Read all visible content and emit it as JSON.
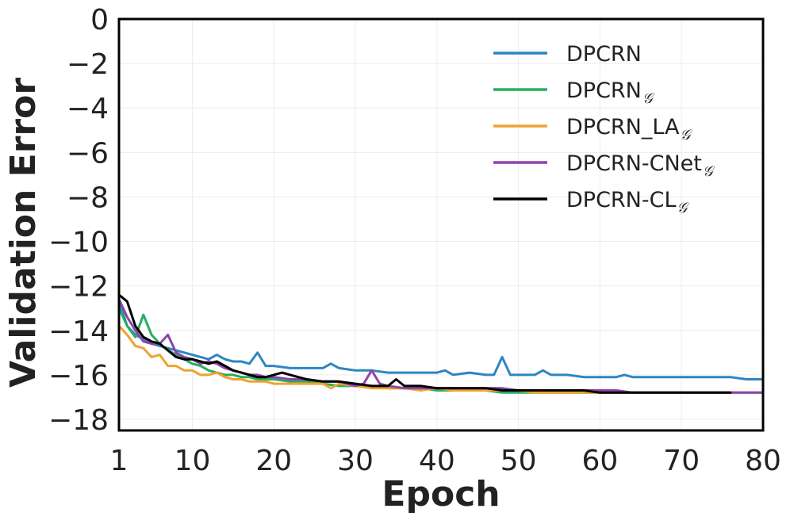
{
  "chart_data": {
    "type": "line",
    "xlabel": "Epoch",
    "ylabel": "Validation Error",
    "xlim": [
      1,
      80
    ],
    "ylim": [
      -18.5,
      0
    ],
    "xticks": [
      1,
      10,
      20,
      30,
      40,
      50,
      60,
      70,
      80
    ],
    "xtick_labels": [
      "1",
      "10",
      "20",
      "30",
      "40",
      "50",
      "60",
      "70",
      "80"
    ],
    "yticks": [
      0,
      -2,
      -4,
      -6,
      -8,
      -10,
      -12,
      -14,
      -16,
      -18
    ],
    "ytick_labels": [
      "0",
      "−2",
      "−4",
      "−6",
      "−8",
      "−10",
      "−12",
      "−14",
      "−16",
      "−18"
    ],
    "grid": true,
    "legend_position": "top-right",
    "series": [
      {
        "name": "DPCRN",
        "subscript": "",
        "color": "#2e86c1",
        "x": [
          1,
          2,
          3,
          4,
          5,
          6,
          7,
          8,
          9,
          10,
          11,
          12,
          13,
          14,
          15,
          16,
          17,
          18,
          19,
          20,
          22,
          24,
          26,
          27,
          28,
          30,
          32,
          34,
          36,
          38,
          40,
          41,
          42,
          44,
          46,
          47,
          48,
          49,
          50,
          52,
          53,
          54,
          56,
          58,
          60,
          62,
          63,
          64,
          66,
          68,
          70,
          72,
          74,
          76,
          78,
          80
        ],
        "y": [
          -12.7,
          -13.8,
          -14.2,
          -14.4,
          -14.6,
          -14.7,
          -14.8,
          -14.9,
          -15.0,
          -15.1,
          -15.2,
          -15.3,
          -15.1,
          -15.3,
          -15.4,
          -15.4,
          -15.5,
          -15.0,
          -15.6,
          -15.6,
          -15.7,
          -15.7,
          -15.7,
          -15.5,
          -15.7,
          -15.8,
          -15.8,
          -15.9,
          -15.9,
          -15.9,
          -15.9,
          -15.8,
          -16.0,
          -15.9,
          -16.0,
          -16.0,
          -15.2,
          -16.0,
          -16.0,
          -16.0,
          -15.8,
          -16.0,
          -16.0,
          -16.1,
          -16.1,
          -16.1,
          -16.0,
          -16.1,
          -16.1,
          -16.1,
          -16.1,
          -16.1,
          -16.1,
          -16.1,
          -16.2,
          -16.2
        ]
      },
      {
        "name": "DPCRN",
        "subscript": "𝒢",
        "color": "#27ae60",
        "x": [
          1,
          2,
          3,
          4,
          5,
          6,
          7,
          8,
          9,
          10,
          11,
          12,
          13,
          14,
          15,
          16,
          17,
          18,
          19,
          20,
          22,
          24,
          26,
          28,
          30,
          32,
          34,
          36,
          38,
          40,
          42,
          44,
          46,
          48,
          50,
          52,
          54,
          56,
          58,
          60,
          62,
          64,
          66,
          68,
          70,
          72,
          74,
          76,
          78,
          80
        ],
        "y": [
          -13.0,
          -13.8,
          -14.3,
          -13.3,
          -14.2,
          -14.6,
          -14.9,
          -15.1,
          -15.3,
          -15.5,
          -15.6,
          -15.8,
          -15.9,
          -16.0,
          -16.0,
          -16.1,
          -16.1,
          -16.2,
          -16.2,
          -16.2,
          -16.3,
          -16.3,
          -16.4,
          -16.5,
          -16.5,
          -16.5,
          -16.6,
          -16.6,
          -16.6,
          -16.7,
          -16.7,
          -16.7,
          -16.7,
          -16.8,
          -16.8,
          -16.8,
          -16.8,
          -16.8,
          -16.8,
          -16.8,
          -16.8,
          -16.8,
          -16.8,
          -16.8,
          -16.8,
          -16.8,
          -16.8,
          -16.8,
          -16.8,
          -16.8
        ]
      },
      {
        "name": "DPCRN_LA",
        "subscript": "𝒢",
        "color": "#f0a22e",
        "x": [
          1,
          2,
          3,
          4,
          5,
          6,
          7,
          8,
          9,
          10,
          11,
          12,
          13,
          14,
          15,
          16,
          17,
          18,
          19,
          20,
          22,
          24,
          26,
          27,
          28,
          30,
          32,
          34,
          36,
          38,
          40,
          42,
          44,
          46,
          48,
          50,
          52,
          54,
          56,
          58,
          60,
          62,
          64,
          66,
          68,
          70,
          72,
          74,
          76
        ],
        "y": [
          -13.8,
          -14.2,
          -14.7,
          -14.8,
          -15.2,
          -15.1,
          -15.6,
          -15.6,
          -15.8,
          -15.8,
          -16.0,
          -16.0,
          -15.9,
          -16.1,
          -16.2,
          -16.2,
          -16.3,
          -16.3,
          -16.3,
          -16.4,
          -16.4,
          -16.4,
          -16.4,
          -16.6,
          -16.4,
          -16.5,
          -16.6,
          -16.6,
          -16.6,
          -16.7,
          -16.6,
          -16.7,
          -16.7,
          -16.7,
          -16.7,
          -16.7,
          -16.8,
          -16.8,
          -16.8,
          -16.8,
          -16.8,
          -16.8,
          -16.8,
          -16.8,
          -16.8,
          -16.8,
          -16.8,
          -16.8,
          -16.8
        ]
      },
      {
        "name": "DPCRN-CNet",
        "subscript": "𝒢",
        "color": "#8e44ad",
        "x": [
          1,
          2,
          3,
          4,
          5,
          6,
          7,
          8,
          9,
          10,
          11,
          12,
          13,
          14,
          15,
          16,
          17,
          18,
          19,
          20,
          22,
          24,
          26,
          28,
          30,
          31,
          32,
          33,
          34,
          36,
          38,
          40,
          42,
          44,
          46,
          48,
          50,
          52,
          54,
          56,
          58,
          60,
          62,
          64,
          66,
          68,
          70,
          72,
          74,
          76,
          78,
          80
        ],
        "y": [
          -12.6,
          -13.4,
          -14.0,
          -14.5,
          -14.6,
          -14.6,
          -14.2,
          -15.0,
          -15.2,
          -15.3,
          -15.5,
          -15.4,
          -15.5,
          -15.7,
          -15.8,
          -15.9,
          -16.0,
          -16.0,
          -16.1,
          -16.1,
          -16.2,
          -16.2,
          -16.3,
          -16.3,
          -16.5,
          -16.4,
          -15.8,
          -16.4,
          -16.5,
          -16.6,
          -16.6,
          -16.6,
          -16.6,
          -16.6,
          -16.6,
          -16.6,
          -16.7,
          -16.7,
          -16.7,
          -16.7,
          -16.7,
          -16.7,
          -16.7,
          -16.8,
          -16.8,
          -16.8,
          -16.8,
          -16.8,
          -16.8,
          -16.8,
          -16.8,
          -16.8
        ]
      },
      {
        "name": "DPCRN-CL",
        "subscript": "𝒢",
        "color": "#000000",
        "x": [
          1,
          2,
          3,
          4,
          5,
          6,
          7,
          8,
          9,
          10,
          11,
          12,
          13,
          14,
          15,
          16,
          17,
          18,
          19,
          20,
          21,
          22,
          24,
          26,
          28,
          30,
          32,
          33,
          34,
          35,
          36,
          38,
          40,
          42,
          44,
          46,
          48,
          50,
          52,
          54,
          56,
          58,
          60,
          62,
          64,
          66,
          68,
          70,
          72,
          74,
          76
        ],
        "y": [
          -12.4,
          -12.7,
          -13.8,
          -14.3,
          -14.5,
          -14.6,
          -14.9,
          -15.2,
          -15.3,
          -15.3,
          -15.4,
          -15.5,
          -15.4,
          -15.6,
          -15.8,
          -15.9,
          -16.0,
          -16.1,
          -16.1,
          -16.0,
          -15.9,
          -16.0,
          -16.2,
          -16.3,
          -16.3,
          -16.4,
          -16.5,
          -16.5,
          -16.5,
          -16.2,
          -16.5,
          -16.5,
          -16.6,
          -16.6,
          -16.6,
          -16.6,
          -16.7,
          -16.7,
          -16.7,
          -16.7,
          -16.7,
          -16.7,
          -16.8,
          -16.8,
          -16.8,
          -16.8,
          -16.8,
          -16.8,
          -16.8,
          -16.8,
          -16.8
        ]
      }
    ]
  }
}
